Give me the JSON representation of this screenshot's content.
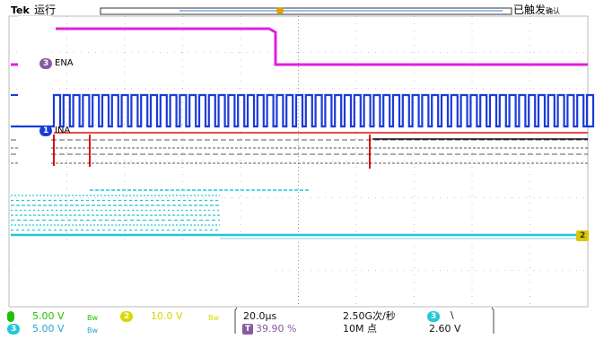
{
  "header": {
    "brand": "Tek",
    "run_state": "运行",
    "trigger_mode": "已触发",
    "trigger_mode_tail": "确认"
  },
  "channels": {
    "ena_label": "ENA",
    "ena_marker": "3",
    "ina_label": "INA",
    "ina_marker": "1",
    "ch2_marker": "2"
  },
  "colors": {
    "ch1": "#1a3bd6",
    "ch2": "#d8d800",
    "ch3": "#22c8d8",
    "ch4": "#e020e0",
    "ch_red": "#e01010",
    "grid": "#999999"
  },
  "status_bar": {
    "ch1_scale": "5.00 V",
    "ch2_num": "2",
    "ch2_scale": "10.0 V",
    "ch3_num": "3",
    "ch3_scale": "5.00 V",
    "bw_symbol": "Bw",
    "timebase": "20.0µs",
    "trigger_pos_marker": "T",
    "trigger_pos": "39.90 %",
    "sample_rate": "2.50G次/秒",
    "record_length": "10M 点",
    "trig_source_num": "3",
    "trig_slope": "\\",
    "trig_level": "2.60 V"
  }
}
